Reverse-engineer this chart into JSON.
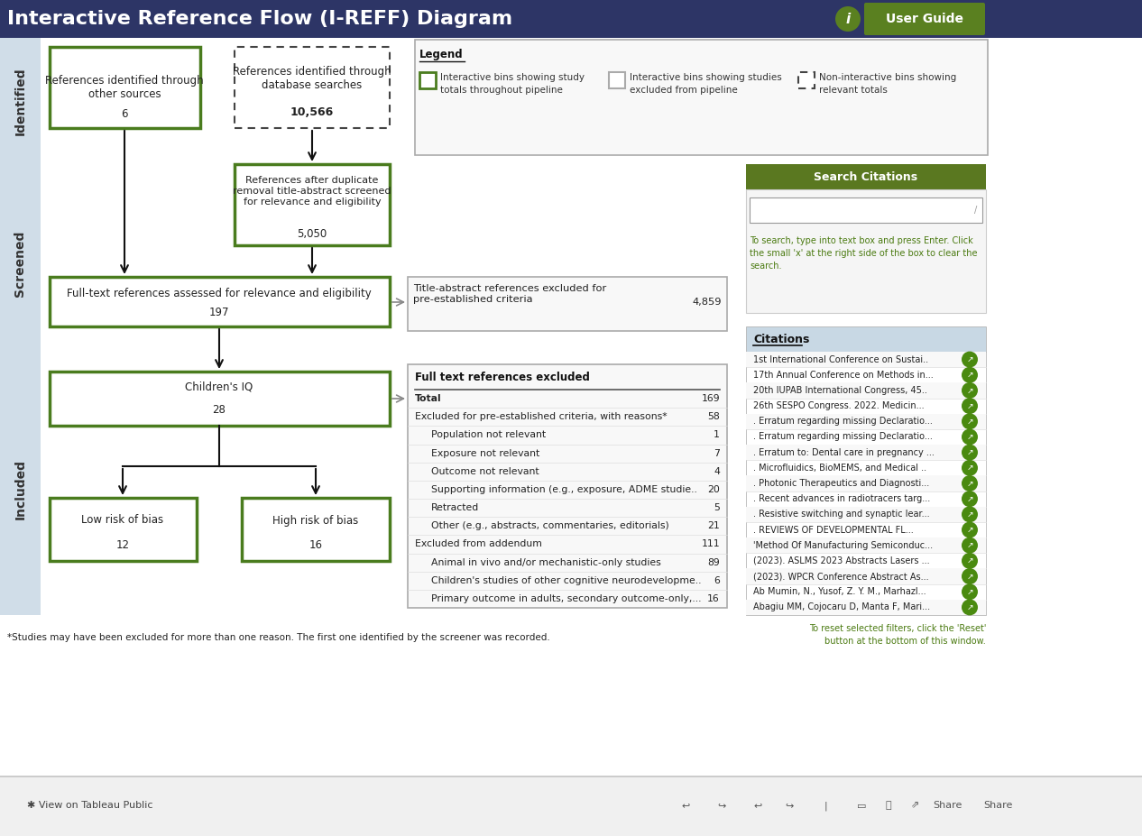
{
  "title": "Interactive Reference Flow (I-REFF) Diagram",
  "title_bg": "#2d3566",
  "title_color": "#ffffff",
  "title_fontsize": 16,
  "user_guide_bg": "#5a8020",
  "user_guide_color": "#ffffff",
  "info_bg": "#5a8020",
  "green_box_edge": "#4a7c1e",
  "gray_box_edge": "#aaaaaa",
  "dashed_box_edge": "#444444",
  "side_label_bg": "#d0dde8",
  "footnote": "*Studies may have been excluded for more than one reason. The first one identified by the screener was recorded.",
  "reset_text": "To reset selected filters, click the 'Reset'\nbutton at the bottom of this window.",
  "search_instructions": "To search, type into text box and press Enter. Click\nthe small 'x' at the right side of the box to clear the\nsearch.",
  "search_text_color": "#4a7a10",
  "citations_title_bg": "#c8d8e4",
  "green_icon_color": "#4a8a10",
  "citations": [
    "1st International Conference on Sustai..",
    "17th Annual Conference on Methods in...",
    "20th IUPAB International Congress, 45..",
    "26th SESPO Congress. 2022. Medicin...",
    ". Erratum regarding missing Declaratio...",
    ". Erratum regarding missing Declaratio...",
    ". Erratum to: Dental care in pregnancy ...",
    ". Microfluidics, BioMEMS, and Medical ..",
    ". Photonic Therapeutics and Diagnosti...",
    ". Recent advances in radiotracers targ...",
    ". Resistive switching and synaptic lear...",
    ". REVIEWS OF DEVELOPMENTAL FL...",
    "'Method Of Manufacturing Semiconduc...",
    "(2023). ASLMS 2023 Abstracts Lasers ...",
    "(2023). WPCR Conference Abstract As...",
    "Ab Mumin, N., Yusof, Z. Y. M., Marhazl...",
    "Abagiu MM, Cojocaru D, Manta F, Mari..."
  ],
  "fulltext_rows": [
    {
      "label": "Total",
      "value": "169",
      "bold": true,
      "indent": 0
    },
    {
      "label": "Excluded for pre-established criteria, with reasons*",
      "value": "58",
      "bold": false,
      "indent": 0
    },
    {
      "label": "Population not relevant",
      "value": "1",
      "bold": false,
      "indent": 1
    },
    {
      "label": "Exposure not relevant",
      "value": "7",
      "bold": false,
      "indent": 1
    },
    {
      "label": "Outcome not relevant",
      "value": "4",
      "bold": false,
      "indent": 1
    },
    {
      "label": "Supporting information (e.g., exposure, ADME studie..",
      "value": "20",
      "bold": false,
      "indent": 1
    },
    {
      "label": "Retracted",
      "value": "5",
      "bold": false,
      "indent": 1
    },
    {
      "label": "Other (e.g., abstracts, commentaries, editorials)",
      "value": "21",
      "bold": false,
      "indent": 1
    },
    {
      "label": "Excluded from addendum",
      "value": "111",
      "bold": false,
      "indent": 0
    },
    {
      "label": "Animal in vivo and/or mechanistic-only studies",
      "value": "89",
      "bold": false,
      "indent": 1
    },
    {
      "label": "Children's studies of other cognitive neurodevelopme..",
      "value": "6",
      "bold": false,
      "indent": 1
    },
    {
      "label": "Primary outcome in adults, secondary outcome-only,...",
      "value": "16",
      "bold": false,
      "indent": 1
    }
  ]
}
